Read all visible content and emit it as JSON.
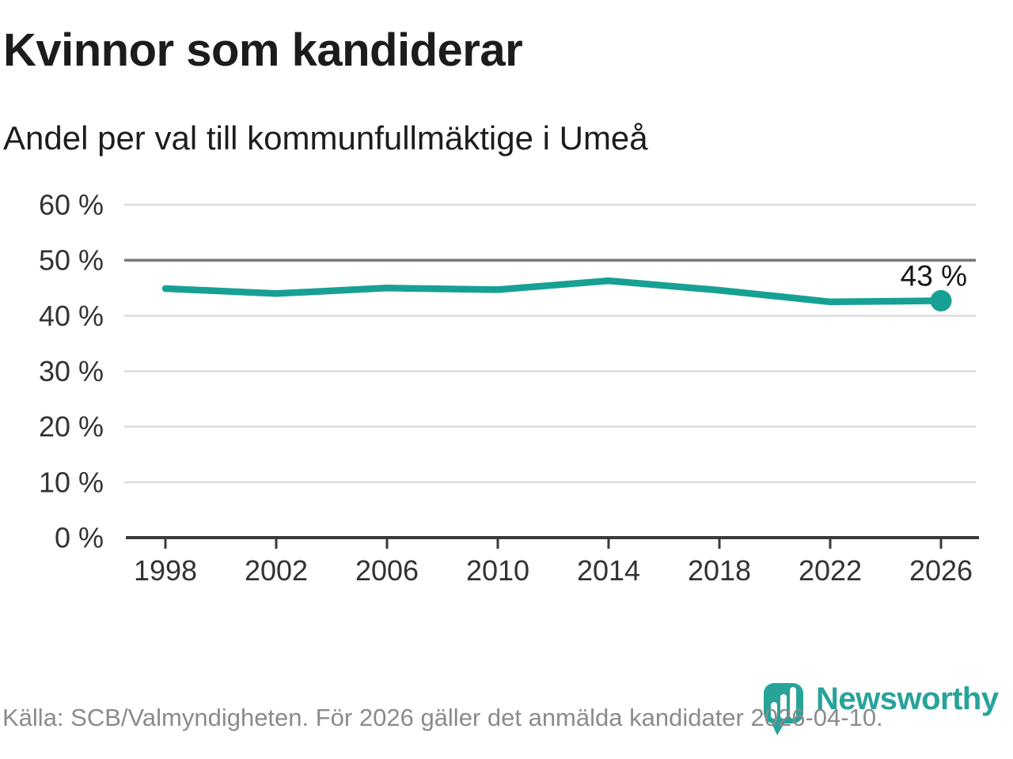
{
  "header": {
    "title": "Kvinnor som kandiderar",
    "subtitle": "Andel per val till kommunfullmäktige i Umeå"
  },
  "chart_data": {
    "type": "line",
    "title": "Kvinnor som kandiderar",
    "subtitle": "Andel per val till kommunfullmäktige i Umeå",
    "categories": [
      "1998",
      "2002",
      "2006",
      "2010",
      "2014",
      "2018",
      "2022",
      "2026"
    ],
    "values": [
      44.9,
      44.0,
      45.0,
      44.7,
      46.3,
      44.6,
      42.5,
      42.7
    ],
    "unit": "%",
    "ylim": [
      0,
      60
    ],
    "yticks": [
      0,
      10,
      20,
      30,
      40,
      50,
      60
    ],
    "ytick_labels": [
      "0 %",
      "10 %",
      "20 %",
      "30 %",
      "40 %",
      "50 %",
      "60 %"
    ],
    "emphasized_gridline": 50,
    "grid": true,
    "legend": "none",
    "end_label": "43 %",
    "line_color": "#17a094",
    "dot_color": "#17a094",
    "grid_color": "#dcdcdc",
    "emphasized_grid_color": "#777777",
    "axis_color": "#3a3a3a",
    "tick_label_color": "#333333",
    "end_label_color": "#161616"
  },
  "footer": {
    "source": "Källa: SCB/Valmyndigheten. För 2026 gäller det anmälda kandidater 2026-04-10.",
    "brand": "Newsworthy",
    "brand_color": "#27a39a"
  }
}
